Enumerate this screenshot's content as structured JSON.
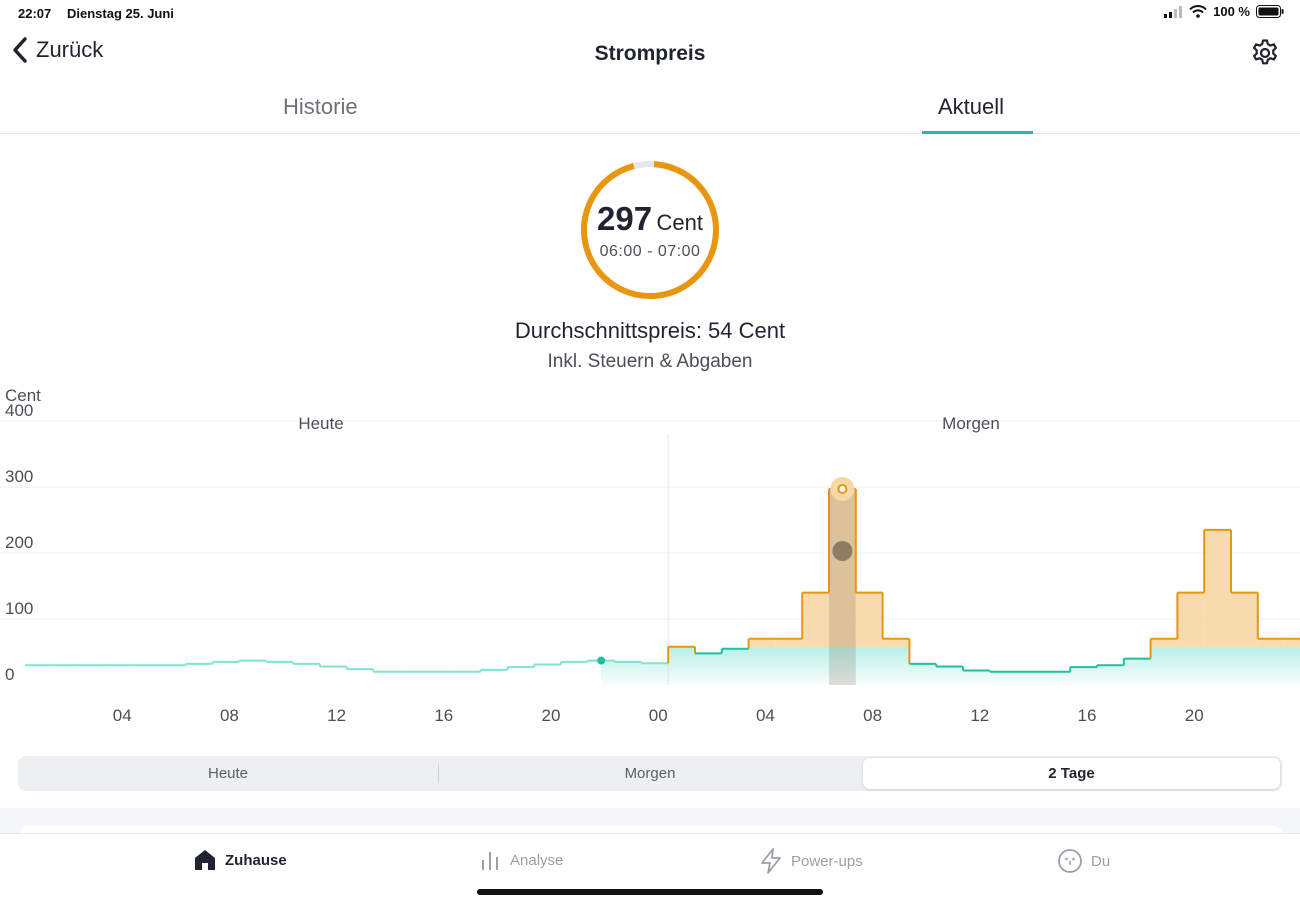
{
  "status_bar": {
    "time": "22:07",
    "date": "Dienstag 25. Juni",
    "battery": "100 %"
  },
  "nav": {
    "back_label": "Zurück",
    "title": "Strompreis",
    "settings_icon": "gear-icon"
  },
  "tabs": {
    "historie": "Historie",
    "aktuell": "Aktuell"
  },
  "current_price": {
    "value": "297",
    "unit": "Cent",
    "time_range": "06:00 - 07:00",
    "gauge_fraction": 0.97
  },
  "average": {
    "label": "Durchschnittspreis: 54 Cent",
    "note": "Inkl. Steuern & Abgaben"
  },
  "chart_data": {
    "type": "line",
    "ylabel": "Cent",
    "ylim": [
      0,
      400
    ],
    "y_ticks": [
      "400",
      "300",
      "200",
      "100",
      "0"
    ],
    "sections": [
      "Heute",
      "Morgen"
    ],
    "x_ticks": [
      "04",
      "08",
      "12",
      "16",
      "20",
      "00",
      "04",
      "08",
      "12",
      "16",
      "20"
    ],
    "threshold": 57,
    "current_hour_index": 21.5,
    "selected_hour": 30,
    "series": [
      {
        "values": [
          30,
          30,
          30,
          30,
          30,
          30,
          32,
          35,
          37,
          35,
          32,
          28,
          24,
          20,
          20,
          20,
          20,
          23,
          27,
          31,
          35,
          37,
          35,
          33,
          58,
          48,
          55,
          70,
          70,
          140,
          297,
          140,
          70,
          32,
          28,
          22,
          20,
          20,
          20,
          27,
          30,
          40,
          70,
          140,
          235,
          140,
          70,
          70
        ]
      }
    ]
  },
  "range_selector": {
    "heute": "Heute",
    "morgen": "Morgen",
    "zwei_tage": "2 Tage"
  },
  "bottom_nav": {
    "zuhause": "Zuhause",
    "analyse": "Analyse",
    "powerups": "Power-ups",
    "du": "Du"
  },
  "colors": {
    "accent_orange": "#e8960f",
    "accent_teal": "#1fbf9f",
    "light_teal": "#7fe3d3",
    "orange_fill": "#f6d7a6"
  }
}
